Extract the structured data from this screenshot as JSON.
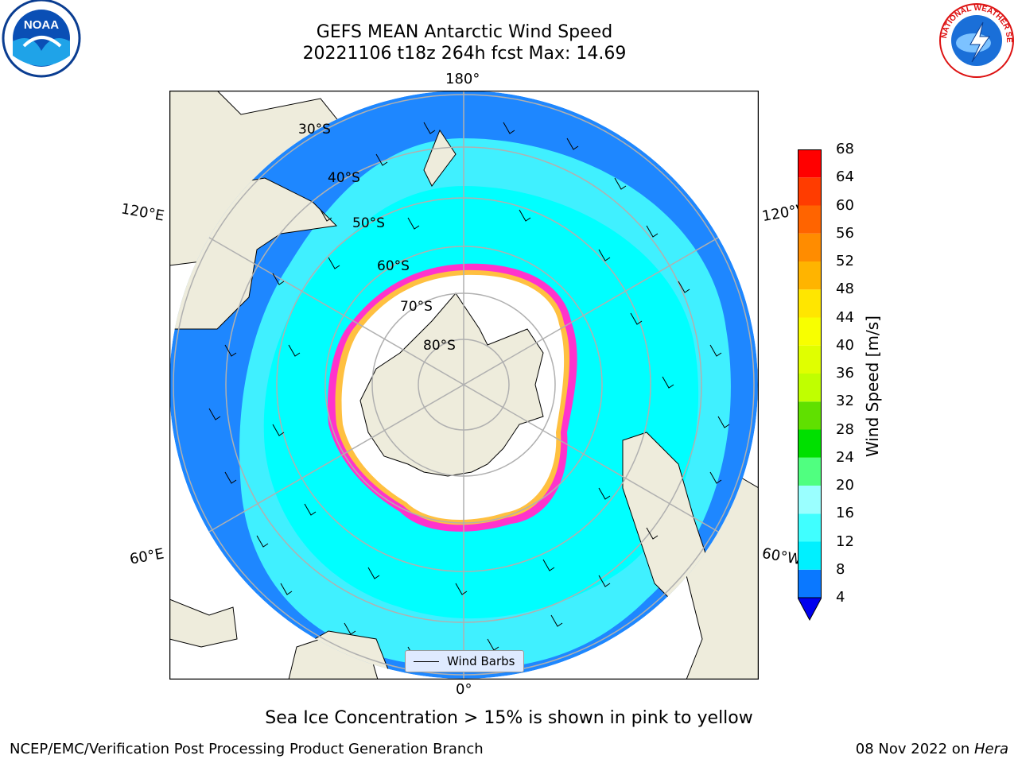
{
  "header": {
    "title_line1": "GEFS MEAN Antarctic Wind Speed",
    "title_line2": "20221106 t18z 264h fcst   Max: 14.69"
  },
  "logos": {
    "left": {
      "icon": "noaa-logo",
      "text": "NOAA"
    },
    "right": {
      "icon": "nws-logo",
      "text": "NATIONAL WEATHER SERVICE"
    }
  },
  "map": {
    "projection": "south-polar-stereographic",
    "lon_labels": {
      "top": "180°",
      "bottom": "0°",
      "left_upper": "120°E",
      "left_lower": "60°E",
      "right_upper": "120°W",
      "right_lower": "60°W"
    },
    "lat_labels": [
      "30°S",
      "40°S",
      "50°S",
      "60°S",
      "70°S",
      "80°S"
    ],
    "legend_label": "Wind Barbs",
    "colors": {
      "land": "#eeecdc",
      "ocean_low": "#1e87ff",
      "ocean_mid": "#00ffff",
      "ocean_mid2": "#40f0ff",
      "ice_edge_pink": "#ff33cc",
      "ice_edge_yellow": "#ffc040"
    }
  },
  "colorbar": {
    "label": "Wind Speed [m/s]",
    "ticks": [
      "4",
      "8",
      "12",
      "16",
      "20",
      "24",
      "28",
      "32",
      "36",
      "40",
      "44",
      "48",
      "52",
      "56",
      "60",
      "64",
      "68"
    ],
    "colors": [
      "#0a78ff",
      "#00f0ff",
      "#40ffff",
      "#9affff",
      "#50ff80",
      "#00e000",
      "#60e000",
      "#c0ff00",
      "#e0ff00",
      "#f8ff00",
      "#ffe600",
      "#ffb400",
      "#ff8c00",
      "#ff6400",
      "#ff3c00",
      "#ff0000"
    ],
    "extend_color": "#0000ee"
  },
  "footer": {
    "note": "Sea Ice Concentration > 15% is shown in pink to yellow",
    "left": "NCEP/EMC/Verification Post Processing Product Generation Branch",
    "right_prefix": "08 Nov 2022 on ",
    "right_machine": "Hera"
  }
}
